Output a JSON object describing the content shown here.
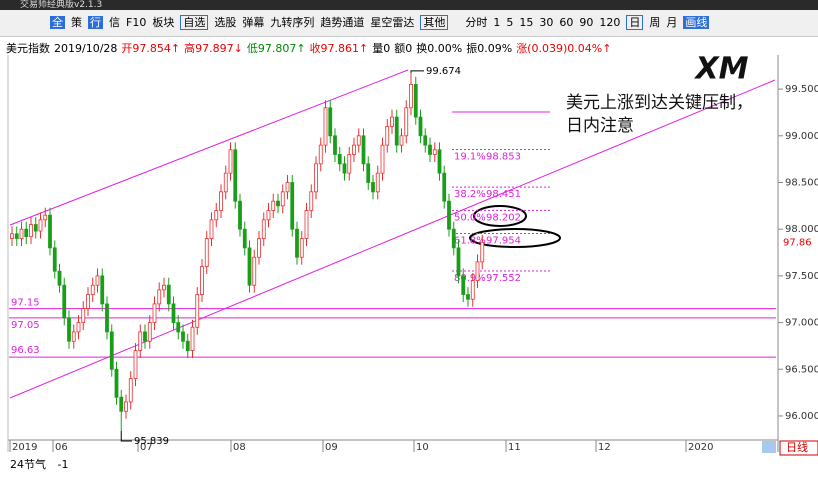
{
  "title_bar": {
    "app_name": "交易师经典版v2.1.3"
  },
  "toolbar": {
    "left": [
      "全",
      "策",
      "行",
      "信",
      "F10"
    ],
    "items": [
      "板块",
      "自选",
      "选股",
      "弹幕",
      "九转序列",
      "趋势通道",
      "星空雷达",
      "其他",
      "分时",
      "1",
      "5",
      "15",
      "30",
      "60",
      "90",
      "120",
      "日",
      "周",
      "月",
      "画线"
    ]
  },
  "quote": [
    "美元指数",
    "2019/10/28",
    "开97.854↑",
    "高97.897↓",
    "低97.807↑",
    "收97.861↑",
    "量0",
    "额0",
    "换0.00%",
    "振0.09%",
    "涨(0.039)0.04%↑"
  ],
  "logo": "XM",
  "annotation": [
    "美元上涨到达关键压制，",
    "日内注意"
  ],
  "price_axis": {
    "ylim": [
      95.764,
      99.833
    ],
    "yticks": [
      {
        "value": 99.5,
        "label": "99.500"
      },
      {
        "value": 99,
        "label": "99.000"
      },
      {
        "value": 98.5,
        "label": "98.500"
      },
      {
        "value": 98,
        "label": "98.000"
      },
      {
        "value": 97.5,
        "label": "97.500"
      },
      {
        "value": 97,
        "label": "97.000"
      },
      {
        "value": 96.5,
        "label": "96.500"
      },
      {
        "value": 96,
        "label": "96.000"
      }
    ],
    "last_price": 97.86
  },
  "time_axis": [
    "2019",
    "06",
    "07",
    "08",
    "09",
    "10",
    "11",
    "12",
    "2020"
  ],
  "levels": [
    97.15,
    97.05,
    96.63
  ],
  "extremes": {
    "high": 99.674,
    "low": 95.839
  },
  "fib": [
    {
      "pct": "19.1%",
      "value": 98.853
    },
    {
      "pct": "38.2%",
      "value": 98.451
    },
    {
      "pct": "50.0%",
      "value": 98.202
    },
    {
      "pct": "61.8%",
      "value": 97.954
    },
    {
      "pct": "80.9%",
      "value": 97.552
    }
  ],
  "candles": [
    [
      97.9,
      98.03,
      97.82,
      97.95
    ],
    [
      97.95,
      98.03,
      97.82,
      97.9
    ],
    [
      97.9,
      98.08,
      97.82,
      98.0
    ],
    [
      98.0,
      98.08,
      97.84,
      97.92
    ],
    [
      97.92,
      98.13,
      97.84,
      98.05
    ],
    [
      98.05,
      98.13,
      97.9,
      97.98
    ],
    [
      97.98,
      98.18,
      97.9,
      98.1
    ],
    [
      98.1,
      98.23,
      98.02,
      98.15
    ],
    [
      98.15,
      98.23,
      97.72,
      97.8
    ],
    [
      97.8,
      97.88,
      97.47,
      97.55
    ],
    [
      97.55,
      97.63,
      97.32,
      97.4
    ],
    [
      97.4,
      97.48,
      96.97,
      97.05
    ],
    [
      97.05,
      97.13,
      96.72,
      96.8
    ],
    [
      96.8,
      96.98,
      96.72,
      96.9
    ],
    [
      96.9,
      97.08,
      96.82,
      97.0
    ],
    [
      97.0,
      97.23,
      96.92,
      97.15
    ],
    [
      97.15,
      97.38,
      97.07,
      97.3
    ],
    [
      97.3,
      97.48,
      97.22,
      97.4
    ],
    [
      97.4,
      97.58,
      97.32,
      97.5
    ],
    [
      97.5,
      97.58,
      97.12,
      97.2
    ],
    [
      97.2,
      97.28,
      96.82,
      96.9
    ],
    [
      96.9,
      96.98,
      96.42,
      96.5
    ],
    [
      96.5,
      96.58,
      96.12,
      96.2
    ],
    [
      96.2,
      96.28,
      95.839,
      96.05
    ],
    [
      96.05,
      96.23,
      95.97,
      96.15
    ],
    [
      96.15,
      96.48,
      96.07,
      96.4
    ],
    [
      96.4,
      96.78,
      96.32,
      96.7
    ],
    [
      96.7,
      96.98,
      96.62,
      96.9
    ],
    [
      96.9,
      96.98,
      96.72,
      96.8
    ],
    [
      96.8,
      97.08,
      96.72,
      97.0
    ],
    [
      97.0,
      97.28,
      96.92,
      97.2
    ],
    [
      97.2,
      97.43,
      97.12,
      97.35
    ],
    [
      97.35,
      97.48,
      97.27,
      97.4
    ],
    [
      97.4,
      97.48,
      97.12,
      97.2
    ],
    [
      97.2,
      97.28,
      96.92,
      97.0
    ],
    [
      97.0,
      97.08,
      96.82,
      96.9
    ],
    [
      96.9,
      96.98,
      96.72,
      96.8
    ],
    [
      96.8,
      96.88,
      96.62,
      96.7
    ],
    [
      96.7,
      97.03,
      96.62,
      96.95
    ],
    [
      96.95,
      97.38,
      96.87,
      97.3
    ],
    [
      97.3,
      97.68,
      97.22,
      97.6
    ],
    [
      97.6,
      97.98,
      97.52,
      97.9
    ],
    [
      97.9,
      98.18,
      97.82,
      98.1
    ],
    [
      98.1,
      98.28,
      98.02,
      98.2
    ],
    [
      98.2,
      98.48,
      98.12,
      98.4
    ],
    [
      98.4,
      98.68,
      98.32,
      98.6
    ],
    [
      98.6,
      98.93,
      98.52,
      98.85
    ],
    [
      98.85,
      98.93,
      98.22,
      98.3
    ],
    [
      98.3,
      98.38,
      97.92,
      98.0
    ],
    [
      98.0,
      98.08,
      97.72,
      97.8
    ],
    [
      97.8,
      97.88,
      97.32,
      97.4
    ],
    [
      97.4,
      97.78,
      97.32,
      97.7
    ],
    [
      97.7,
      97.98,
      97.62,
      97.9
    ],
    [
      97.9,
      98.18,
      97.82,
      98.1
    ],
    [
      98.1,
      98.28,
      98.02,
      98.2
    ],
    [
      98.2,
      98.38,
      98.12,
      98.3
    ],
    [
      98.3,
      98.38,
      98.17,
      98.25
    ],
    [
      98.25,
      98.48,
      98.17,
      98.4
    ],
    [
      98.4,
      98.58,
      98.32,
      98.5
    ],
    [
      98.5,
      98.58,
      97.92,
      98.0
    ],
    [
      98.0,
      98.08,
      97.62,
      97.7
    ],
    [
      97.7,
      97.98,
      97.62,
      97.9
    ],
    [
      97.9,
      98.28,
      97.82,
      98.2
    ],
    [
      98.2,
      98.48,
      98.12,
      98.4
    ],
    [
      98.4,
      98.78,
      98.32,
      98.7
    ],
    [
      98.7,
      98.98,
      98.62,
      98.9
    ],
    [
      98.9,
      99.38,
      98.82,
      99.3
    ],
    [
      99.3,
      99.38,
      98.92,
      99.0
    ],
    [
      99.0,
      99.08,
      98.72,
      98.8
    ],
    [
      98.8,
      98.88,
      98.62,
      98.7
    ],
    [
      98.7,
      98.78,
      98.52,
      98.6
    ],
    [
      98.6,
      98.88,
      98.52,
      98.8
    ],
    [
      98.8,
      98.98,
      98.72,
      98.9
    ],
    [
      98.9,
      99.08,
      98.82,
      99.0
    ],
    [
      99.0,
      99.08,
      98.62,
      98.7
    ],
    [
      98.7,
      98.78,
      98.42,
      98.5
    ],
    [
      98.5,
      98.58,
      98.32,
      98.4
    ],
    [
      98.4,
      98.68,
      98.32,
      98.6
    ],
    [
      98.6,
      98.98,
      98.52,
      98.9
    ],
    [
      98.9,
      99.18,
      98.82,
      99.1
    ],
    [
      99.1,
      99.28,
      99.02,
      99.2
    ],
    [
      99.2,
      99.28,
      98.82,
      98.9
    ],
    [
      98.9,
      99.08,
      98.82,
      99.0
    ],
    [
      99.0,
      99.38,
      98.92,
      99.3
    ],
    [
      99.3,
      99.674,
      99.22,
      99.55
    ],
    [
      99.55,
      99.63,
      99.12,
      99.2
    ],
    [
      99.2,
      99.28,
      98.92,
      99.0
    ],
    [
      99.0,
      99.08,
      98.82,
      98.9
    ],
    [
      98.9,
      98.98,
      98.72,
      98.8
    ],
    [
      98.8,
      98.93,
      98.72,
      98.85
    ],
    [
      98.85,
      98.93,
      98.52,
      98.6
    ],
    [
      98.6,
      98.68,
      98.22,
      98.3
    ],
    [
      98.3,
      98.38,
      97.92,
      98.0
    ],
    [
      98.0,
      98.08,
      97.72,
      97.8
    ],
    [
      97.8,
      97.88,
      97.42,
      97.5
    ],
    [
      97.5,
      97.58,
      97.22,
      97.3
    ],
    [
      97.3,
      97.38,
      97.17,
      97.25
    ],
    [
      97.25,
      97.53,
      97.17,
      97.45
    ],
    [
      97.45,
      97.73,
      97.37,
      97.65
    ],
    [
      97.65,
      97.94,
      97.57,
      97.86
    ]
  ],
  "footer": {
    "period_tab": "日线",
    "indicator": "24节气",
    "indicator_value": "-1"
  }
}
